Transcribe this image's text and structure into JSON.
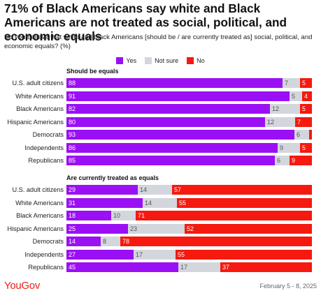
{
  "colors": {
    "yes": "#9b0ff5",
    "not_sure": "#d3d6dc",
    "no": "#f5190f",
    "logo": "#e8211c"
  },
  "chart_data": {
    "type": "bar",
    "title": "71% of Black Americans say white and Black Americans are not treated as social, political, and economic equals",
    "subtitle": "Do you believe that white and black Americans [should be / are currently treated as] social, political, and economic equals? (%)",
    "legend": [
      "Yes",
      "Not sure",
      "No"
    ],
    "categories": [
      "U.S. adult citizens",
      "White Americans",
      "Black Americans",
      "Hispanic Americans",
      "Democrats",
      "Independents",
      "Republicans"
    ],
    "panels": [
      {
        "title": "Should be equals",
        "series": [
          {
            "name": "Yes",
            "values": [
              88,
              91,
              82,
              80,
              93,
              86,
              85
            ]
          },
          {
            "name": "Not sure",
            "values": [
              7,
              5,
              12,
              12,
              6,
              9,
              6
            ]
          },
          {
            "name": "No",
            "values": [
              5,
              4,
              5,
              7,
              1,
              5,
              9
            ]
          }
        ]
      },
      {
        "title": "Are currently treated as equals",
        "series": [
          {
            "name": "Yes",
            "values": [
              29,
              31,
              18,
              25,
              14,
              27,
              45
            ]
          },
          {
            "name": "Not sure",
            "values": [
              14,
              14,
              10,
              23,
              8,
              17,
              17
            ]
          },
          {
            "name": "No",
            "values": [
              57,
              55,
              71,
              52,
              78,
              55,
              37
            ]
          }
        ]
      }
    ],
    "label_hidden": [
      [
        [
          false,
          false,
          false,
          false,
          false,
          false,
          false
        ],
        [
          false,
          false,
          false,
          false,
          false,
          false,
          false
        ],
        [
          false,
          false,
          false,
          false,
          true,
          false,
          false
        ]
      ],
      [
        [
          false,
          false,
          false,
          false,
          false,
          false,
          false
        ],
        [
          false,
          false,
          false,
          false,
          false,
          false,
          false
        ],
        [
          false,
          false,
          false,
          false,
          false,
          false,
          false
        ]
      ]
    ]
  },
  "footer": {
    "logo": "YouGov",
    "date": "February 5 - 8, 2025"
  }
}
